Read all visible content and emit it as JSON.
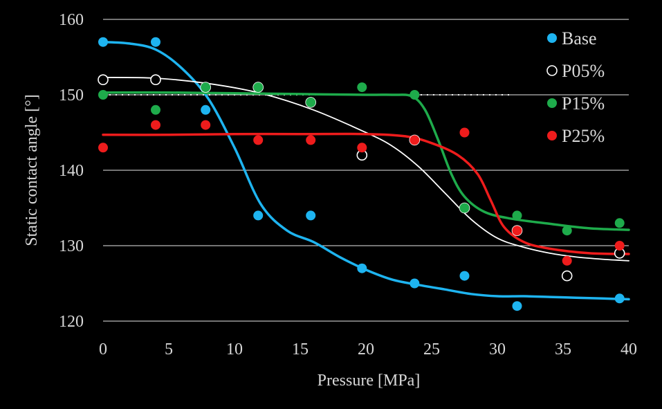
{
  "chart_data": {
    "type": "scatter",
    "xlabel": "Pressure [MPa]",
    "ylabel": "Static contact angle [°]",
    "xlim": [
      0,
      40
    ],
    "ylim": [
      120,
      160
    ],
    "xticks": [
      "0",
      "5",
      "10",
      "15",
      "20",
      "25",
      "30",
      "35",
      "40"
    ],
    "yticks": [
      "120",
      "130",
      "140",
      "150",
      "160"
    ],
    "grid": "horizontal",
    "legend_position": "top-right",
    "reference_line": {
      "y": 150,
      "style": "dotted"
    },
    "series": [
      {
        "name": "Base",
        "color": "#1eb4f0",
        "points": [
          [
            0,
            157
          ],
          [
            4,
            157
          ],
          [
            7.8,
            148
          ],
          [
            11.8,
            134
          ],
          [
            15.8,
            134
          ],
          [
            19.7,
            127
          ],
          [
            23.7,
            125
          ],
          [
            27.5,
            126
          ],
          [
            31.5,
            122
          ],
          [
            39.3,
            123
          ]
        ],
        "fit": [
          [
            0,
            157
          ],
          [
            2,
            156.8
          ],
          [
            4,
            156
          ],
          [
            6,
            153.5
          ],
          [
            8,
            149.5
          ],
          [
            10,
            143
          ],
          [
            12,
            135.5
          ],
          [
            14,
            132
          ],
          [
            16,
            130.5
          ],
          [
            18,
            128.5
          ],
          [
            20,
            126.8
          ],
          [
            22,
            125.5
          ],
          [
            24,
            124.8
          ],
          [
            26,
            124.2
          ],
          [
            28,
            123.6
          ],
          [
            30,
            123.3
          ],
          [
            32,
            123.3
          ],
          [
            34,
            123.2
          ],
          [
            36,
            123.1
          ],
          [
            38,
            123.0
          ],
          [
            40,
            122.9
          ]
        ]
      },
      {
        "name": "P05%",
        "color": "#000000",
        "points": [
          [
            0,
            152
          ],
          [
            4,
            152
          ],
          [
            7.8,
            151
          ],
          [
            11.8,
            151
          ],
          [
            15.8,
            149
          ],
          [
            19.7,
            142
          ],
          [
            23.7,
            144
          ],
          [
            27.5,
            135
          ],
          [
            31.5,
            132
          ],
          [
            35.3,
            126
          ],
          [
            39.3,
            129
          ]
        ],
        "fit": [
          [
            0,
            152.3
          ],
          [
            4,
            152.2
          ],
          [
            8,
            151.5
          ],
          [
            12,
            150.2
          ],
          [
            16,
            148
          ],
          [
            20,
            145
          ],
          [
            22,
            143.2
          ],
          [
            24,
            140.5
          ],
          [
            26,
            137
          ],
          [
            28,
            133.5
          ],
          [
            30,
            131
          ],
          [
            32,
            129.8
          ],
          [
            34,
            129
          ],
          [
            36,
            128.5
          ],
          [
            38,
            128.2
          ],
          [
            40,
            128
          ]
        ]
      },
      {
        "name": "P15%",
        "color": "#1eab4b",
        "points": [
          [
            0,
            150
          ],
          [
            4,
            148
          ],
          [
            7.8,
            151
          ],
          [
            11.8,
            151
          ],
          [
            15.8,
            149
          ],
          [
            19.7,
            151
          ],
          [
            23.7,
            150
          ],
          [
            27.5,
            135
          ],
          [
            31.5,
            134
          ],
          [
            35.3,
            132
          ],
          [
            39.3,
            133
          ]
        ],
        "fit": [
          [
            0,
            150.3
          ],
          [
            5,
            150.3
          ],
          [
            10,
            150.2
          ],
          [
            15,
            150.1
          ],
          [
            20,
            150.0
          ],
          [
            22,
            150.0
          ],
          [
            23.5,
            149.8
          ],
          [
            24.5,
            148
          ],
          [
            25.5,
            144
          ],
          [
            26.5,
            139.5
          ],
          [
            27.5,
            136.5
          ],
          [
            29,
            134.5
          ],
          [
            31,
            133.6
          ],
          [
            34,
            132.9
          ],
          [
            37,
            132.3
          ],
          [
            40,
            132.1
          ]
        ]
      },
      {
        "name": "P25%",
        "color": "#ee1c1c",
        "points": [
          [
            0,
            143
          ],
          [
            4,
            146
          ],
          [
            7.8,
            146
          ],
          [
            11.8,
            144
          ],
          [
            15.8,
            144
          ],
          [
            19.7,
            143
          ],
          [
            23.7,
            144
          ],
          [
            27.5,
            145
          ],
          [
            31.5,
            132
          ],
          [
            35.3,
            128
          ],
          [
            39.3,
            130
          ]
        ],
        "fit": [
          [
            0,
            144.7
          ],
          [
            5,
            144.7
          ],
          [
            10,
            144.8
          ],
          [
            15,
            144.8
          ],
          [
            20,
            144.8
          ],
          [
            23,
            144.5
          ],
          [
            25,
            143.6
          ],
          [
            27,
            142
          ],
          [
            28.5,
            139.5
          ],
          [
            29.5,
            136
          ],
          [
            30.5,
            132.5
          ],
          [
            32,
            130.5
          ],
          [
            34,
            129.6
          ],
          [
            37,
            129.0
          ],
          [
            40,
            128.9
          ]
        ]
      }
    ]
  }
}
